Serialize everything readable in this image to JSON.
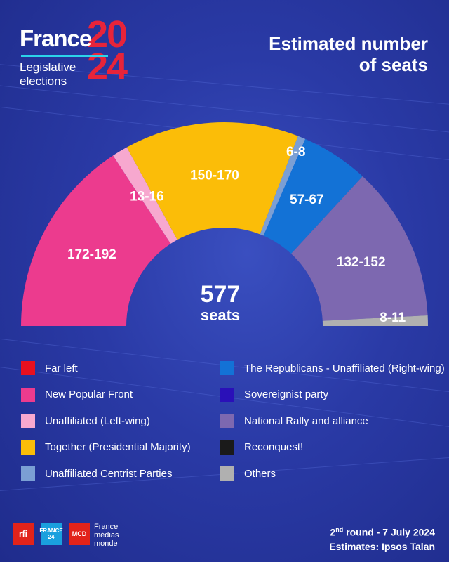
{
  "logo": {
    "brand": "France",
    "year_top": "20",
    "year_bottom": "24",
    "subtitle_line1": "Legislative",
    "subtitle_line2": "elections"
  },
  "headline": {
    "line1": "Estimated number",
    "line2": "of seats"
  },
  "chart_data": {
    "type": "pie",
    "subtype": "parliament-semicircle",
    "total_label": "577",
    "total_unit": "seats",
    "slices": [
      {
        "name": "New Popular Front",
        "label": "172-192",
        "value": 182,
        "color": "#ec3b8e"
      },
      {
        "name": "Unaffiliated (Left-wing)",
        "label": "13-16",
        "value": 14.5,
        "color": "#f7a8cf"
      },
      {
        "name": "Together (Presidential Majority)",
        "label": "150-170",
        "value": 160,
        "color": "#fbbd08"
      },
      {
        "name": "Unaffiliated Centrist Parties",
        "label": "6-8",
        "value": 7,
        "color": "#7b9fd4"
      },
      {
        "name": "The Republicans - Unaffiliated (Right-wing)",
        "label": "57-67",
        "value": 62,
        "color": "#1372d6"
      },
      {
        "name": "National Rally and alliance",
        "label": "132-152",
        "value": 142,
        "color": "#7d68b0"
      },
      {
        "name": "Others",
        "label": "8-11",
        "value": 9.5,
        "color": "#b0b0b0"
      }
    ]
  },
  "legend": {
    "left": [
      {
        "label": "Far left",
        "color": "#e8101e"
      },
      {
        "label": "New Popular Front",
        "color": "#ec3b8e"
      },
      {
        "label": "Unaffiliated (Left-wing)",
        "color": "#f7a8cf"
      },
      {
        "label": "Together (Presidential Majority)",
        "color": "#fbbd08"
      },
      {
        "label": "Unaffiliated Centrist Parties",
        "color": "#7b9fd4"
      }
    ],
    "right": [
      {
        "label": "The Republicans - Unaffiliated (Right-wing)",
        "color": "#1372d6"
      },
      {
        "label": "Sovereignist party",
        "color": "#2a10b8"
      },
      {
        "label": "National Rally and alliance",
        "color": "#7d68b0"
      },
      {
        "label": "Reconquest!",
        "color": "#1a1a1a"
      },
      {
        "label": "Others",
        "color": "#b0b0b0"
      }
    ]
  },
  "footer": {
    "logo_rfi": "rfi",
    "logo_f24_line1": "FRANCE",
    "logo_f24_line2": "24",
    "logo_mcd": "MCD",
    "fmm_line1": "France",
    "fmm_line2": "médias",
    "fmm_line3": "monde",
    "round_num": "2",
    "round_sup": "nd",
    "round_rest": " round - 7 July 2024",
    "estimates": "Estimates: Ipsos Talan"
  }
}
